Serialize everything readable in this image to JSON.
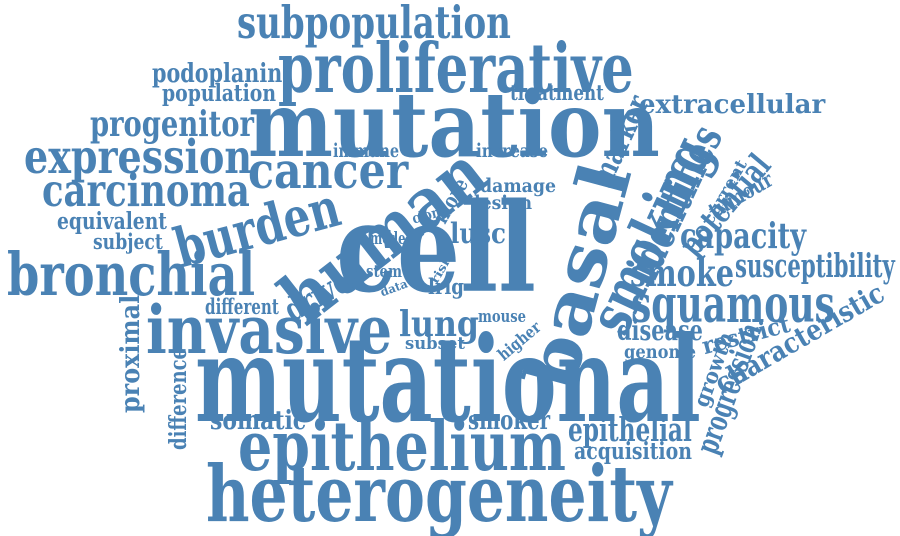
{
  "cloud": {
    "color": "#4a82b4",
    "words": [
      {
        "id": "subpopulation",
        "text": "subpopulation"
      },
      {
        "id": "proliferative",
        "text": "proliferative"
      },
      {
        "id": "podoplanin",
        "text": "podoplanin"
      },
      {
        "id": "population",
        "text": "population"
      },
      {
        "id": "treatment",
        "text": "treatment"
      },
      {
        "id": "mutation",
        "text": "mutation"
      },
      {
        "id": "progenitor",
        "text": "progenitor"
      },
      {
        "id": "extracellular",
        "text": "extracellular"
      },
      {
        "id": "marker",
        "text": "marker"
      },
      {
        "id": "expression",
        "text": "expression"
      },
      {
        "id": "immune",
        "text": "immune"
      },
      {
        "id": "increase",
        "text": "increase"
      },
      {
        "id": "cancer",
        "text": "cancer"
      },
      {
        "id": "human",
        "text": "human"
      },
      {
        "id": "identifies",
        "text": "identifies"
      },
      {
        "id": "potential",
        "text": "potential"
      },
      {
        "id": "current",
        "text": "current"
      },
      {
        "id": "tumour",
        "text": "tumour"
      },
      {
        "id": "carcinoma",
        "text": "carcinoma"
      },
      {
        "id": "damage",
        "text": "damage"
      },
      {
        "id": "lesion",
        "text": "lesion"
      },
      {
        "id": "more",
        "text": "more"
      },
      {
        "id": "clone",
        "text": "clone"
      },
      {
        "id": "smoking",
        "text": "smoking"
      },
      {
        "id": "burden",
        "text": "burden"
      },
      {
        "id": "equivalent",
        "text": "equivalent"
      },
      {
        "id": "subject",
        "text": "subject"
      },
      {
        "id": "lusc",
        "text": "lusc"
      },
      {
        "id": "model",
        "text": "model"
      },
      {
        "id": "capacity",
        "text": "capacity"
      },
      {
        "id": "cell",
        "text": "cell"
      },
      {
        "id": "basal",
        "text": "basal"
      },
      {
        "id": "stem",
        "text": "stem"
      },
      {
        "id": "risk",
        "text": "risk"
      },
      {
        "id": "susceptibility",
        "text": "susceptibility"
      },
      {
        "id": "bronchial",
        "text": "bronchial"
      },
      {
        "id": "smoke",
        "text": "smoke"
      },
      {
        "id": "data",
        "text": "data"
      },
      {
        "id": "lrig",
        "text": "lrig"
      },
      {
        "id": "driver",
        "text": "driver"
      },
      {
        "id": "different",
        "text": "different"
      },
      {
        "id": "squamous",
        "text": "squamous"
      },
      {
        "id": "characteristic",
        "text": "characteristic"
      },
      {
        "id": "proximal",
        "text": "proximal"
      },
      {
        "id": "invasive",
        "text": "invasive"
      },
      {
        "id": "mouse",
        "text": "mouse"
      },
      {
        "id": "lung",
        "text": "lung"
      },
      {
        "id": "higher",
        "text": "higher"
      },
      {
        "id": "disease",
        "text": "disease"
      },
      {
        "id": "restrict",
        "text": "restrict"
      },
      {
        "id": "subset",
        "text": "subset"
      },
      {
        "id": "genome",
        "text": "genome"
      },
      {
        "id": "growth",
        "text": "growth"
      },
      {
        "id": "difference",
        "text": "difference"
      },
      {
        "id": "mutational",
        "text": "mutational"
      },
      {
        "id": "progression",
        "text": "progression"
      },
      {
        "id": "somatic",
        "text": "somatic"
      },
      {
        "id": "smoker",
        "text": "smoker"
      },
      {
        "id": "epithelial",
        "text": "epithelial"
      },
      {
        "id": "epithelium",
        "text": "epithelium"
      },
      {
        "id": "acquisition",
        "text": "acquisition"
      },
      {
        "id": "heterogeneity",
        "text": "heterogeneity"
      }
    ]
  }
}
